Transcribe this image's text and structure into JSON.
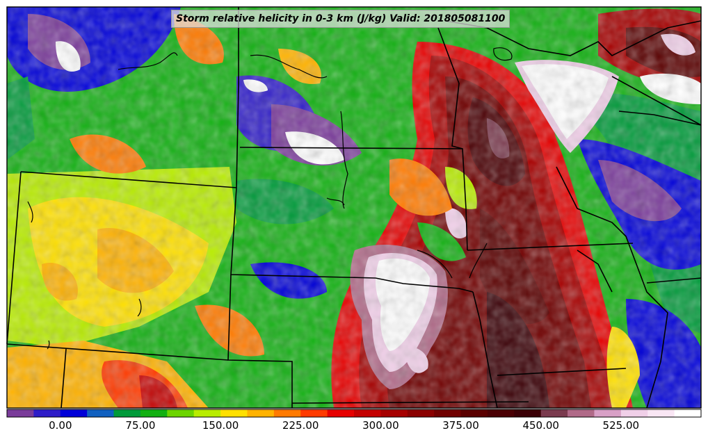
{
  "title": "Storm relative helicity in 0-3 km (J/kg) Valid: 201805081100",
  "colorbar": {
    "colors": [
      "#7a3c9a",
      "#2f1dc8",
      "#0000d8",
      "#1060c0",
      "#009a3a",
      "#12b012",
      "#6cd400",
      "#b8ec00",
      "#ffe000",
      "#ffb200",
      "#ff7a00",
      "#ff3a00",
      "#e60000",
      "#c40000",
      "#a60000",
      "#8a0000",
      "#700000",
      "#5a0000",
      "#4a0004",
      "#3a0006",
      "#7a3a4e",
      "#b06a88",
      "#d8a0c6",
      "#f0cfe8",
      "#f9e6f4",
      "#ffffff"
    ],
    "ticks": [
      {
        "label": "0.00",
        "index": 2
      },
      {
        "label": "75.00",
        "index": 5
      },
      {
        "label": "150.00",
        "index": 8
      },
      {
        "label": "225.00",
        "index": 11
      },
      {
        "label": "300.00",
        "index": 14
      },
      {
        "label": "375.00",
        "index": 17
      },
      {
        "label": "450.00",
        "index": 20
      },
      {
        "label": "525.00",
        "index": 23
      }
    ]
  }
}
